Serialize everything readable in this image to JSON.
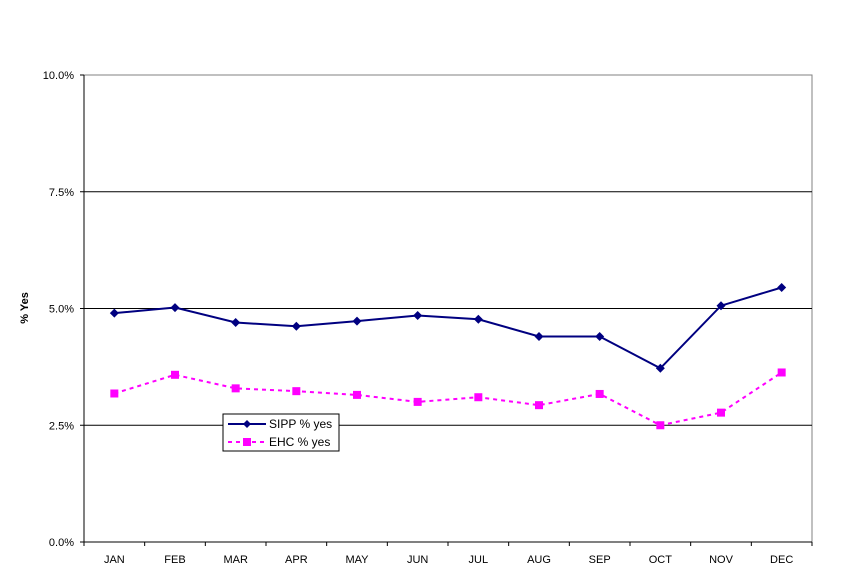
{
  "chart_data": {
    "type": "line",
    "categories": [
      "JAN",
      "FEB",
      "MAR",
      "APR",
      "MAY",
      "JUN",
      "JUL",
      "AUG",
      "SEP",
      "OCT",
      "NOV",
      "DEC"
    ],
    "ylabel": "% Yes",
    "ylim": [
      0,
      10
    ],
    "yticks": [
      "0.0%",
      "2.5%",
      "5.0%",
      "7.5%",
      "10.0%"
    ],
    "ytick_values": [
      0,
      2.5,
      5,
      7.5,
      10
    ],
    "grid": true,
    "legend_position": "lower-left",
    "series": [
      {
        "name": "SIPP % yes",
        "color": "#000080",
        "line_style": "solid",
        "marker": "diamond",
        "values": [
          4.9,
          5.02,
          4.7,
          4.62,
          4.73,
          4.85,
          4.77,
          4.4,
          4.4,
          3.72,
          5.06,
          5.45
        ]
      },
      {
        "name": "EHC % yes",
        "color": "#ff00ff",
        "line_style": "dashed",
        "marker": "square",
        "values": [
          3.18,
          3.58,
          3.29,
          3.23,
          3.15,
          3.0,
          3.1,
          2.93,
          3.17,
          2.5,
          2.77,
          3.63
        ]
      }
    ]
  }
}
